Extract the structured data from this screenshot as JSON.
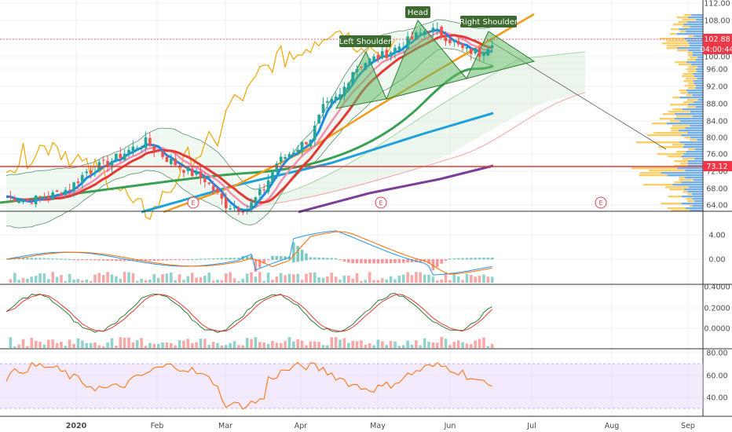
{
  "chart_data": [
    {
      "panel": "price",
      "type": "candlestick",
      "y_axis_labels": [
        "112.00",
        "108.00",
        "104.00",
        "100.00",
        "96.00",
        "92.00",
        "88.00",
        "84.00",
        "80.00",
        "76.00",
        "72.00",
        "68.00",
        "64.00"
      ],
      "ylim": [
        62.5,
        112.5
      ],
      "price_badges": {
        "last_price": "102.88",
        "countdown": "04:00:44",
        "level": "73.12"
      },
      "pattern_labels": [
        "Left Shoulder",
        "Head",
        "Right Shoulder"
      ],
      "earnings_markers": [
        "E",
        "E",
        "E"
      ],
      "colors": {
        "up": "#26a69a",
        "down": "#ef5350",
        "badge": "#f23645",
        "label_bg": "#3d6b2f",
        "macd": "#2196f3",
        "signal": "#ff6d00",
        "rsi": "#ff6d00",
        "rsi_band": "#e9d8fb"
      },
      "close_path": [
        [
          0,
          66
        ],
        [
          5,
          65
        ],
        [
          10,
          66
        ],
        [
          15,
          68
        ],
        [
          19,
          72
        ],
        [
          24,
          74
        ],
        [
          29,
          77
        ],
        [
          33,
          79
        ],
        [
          38,
          75
        ],
        [
          43,
          72
        ],
        [
          47,
          70
        ],
        [
          52,
          64
        ],
        [
          57,
          63
        ],
        [
          61,
          68
        ],
        [
          64,
          74
        ],
        [
          68,
          77
        ],
        [
          72,
          80
        ],
        [
          75,
          87
        ],
        [
          79,
          90
        ],
        [
          82,
          96
        ],
        [
          85,
          98
        ],
        [
          90,
          100
        ],
        [
          95,
          103
        ],
        [
          100,
          106
        ],
        [
          104,
          104
        ],
        [
          108,
          101
        ],
        [
          112,
          100
        ],
        [
          115,
          103
        ]
      ]
    },
    {
      "panel": "macd",
      "type": "histogram+line",
      "y_axis_labels": [
        "4.00",
        "0.00"
      ],
      "ylim": [
        -4.5,
        7
      ]
    },
    {
      "panel": "stochastic",
      "type": "line",
      "y_axis_labels": [
        "0.4000",
        "0.2000",
        "0.0000"
      ],
      "ylim": [
        -0.16,
        0.42
      ]
    },
    {
      "panel": "rsi",
      "type": "line",
      "y_axis_labels": [
        "80.00",
        "60.00",
        "40.00"
      ],
      "ylim": [
        25,
        84
      ],
      "band": [
        30,
        70
      ]
    }
  ],
  "x_axis_labels": [
    "2020",
    "Feb",
    "Mar",
    "Apr",
    "May",
    "Jun",
    "Jul",
    "Aug",
    "Sep"
  ],
  "icons": {
    "earnings": "earnings-marker-icon"
  }
}
